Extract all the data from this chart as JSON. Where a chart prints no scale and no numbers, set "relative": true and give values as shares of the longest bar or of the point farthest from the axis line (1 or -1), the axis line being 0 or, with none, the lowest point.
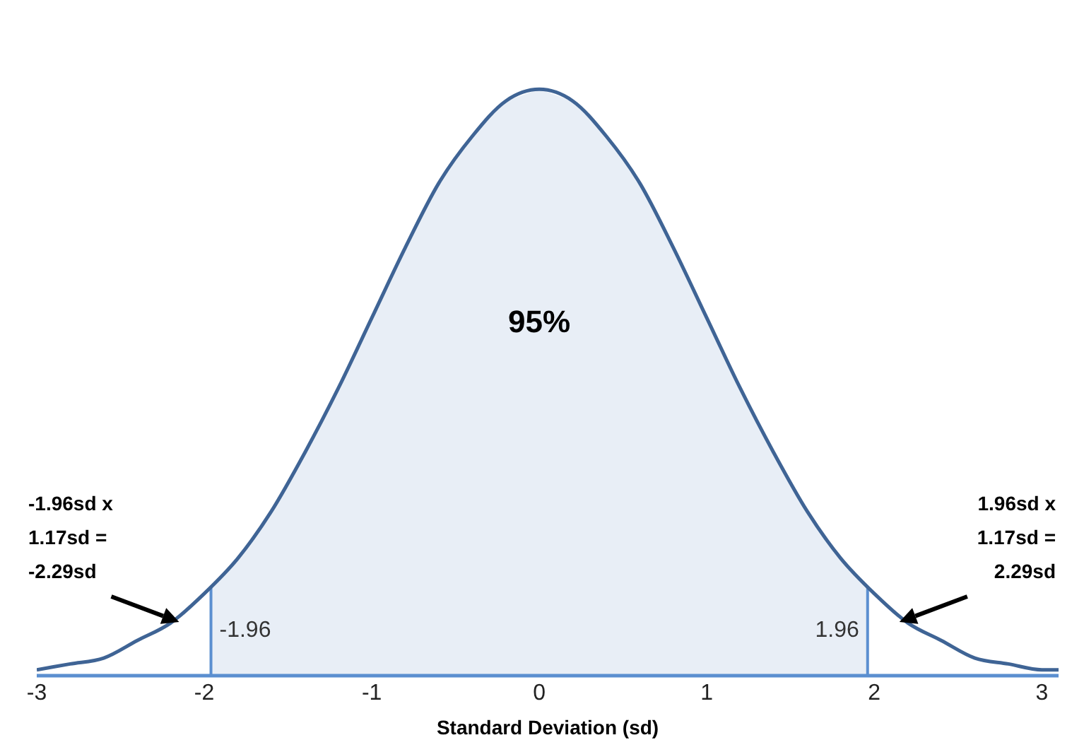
{
  "chart_data": {
    "type": "line",
    "relative": true,
    "xlabel": "Standard Deviation (sd)",
    "x": [
      -3,
      -2.8,
      -2.6,
      -2.4,
      -2.2,
      -2,
      -1.8,
      -1.6,
      -1.4,
      -1.2,
      -1,
      -0.8,
      -0.6,
      -0.4,
      -0.2,
      0,
      0.2,
      0.4,
      0.6,
      0.8,
      1,
      1.2,
      1.4,
      1.6,
      1.8,
      2,
      2.2,
      2.4,
      2.6,
      2.8,
      3,
      3.1
    ],
    "series": [
      {
        "color": "#3f6495",
        "values": [
          0.01,
          0.02,
          0.03,
          0.06,
          0.09,
          0.14,
          0.2,
          0.28,
          0.38,
          0.49,
          0.61,
          0.73,
          0.84,
          0.92,
          0.98,
          1,
          0.98,
          0.92,
          0.84,
          0.73,
          0.61,
          0.49,
          0.38,
          0.28,
          0.2,
          0.14,
          0.09,
          0.06,
          0.03,
          0.02,
          0.01,
          0.01
        ]
      }
    ],
    "xlim": [
      -3,
      3.1
    ],
    "xticks": [
      -3,
      -2,
      -1,
      0,
      1,
      2,
      3
    ],
    "ref_lines": [
      {
        "axis": "x",
        "value": -1.96,
        "label": "-1.96",
        "color": "#5b8fd0"
      },
      {
        "axis": "x",
        "value": 1.96,
        "label": "1.96",
        "color": "#5b8fd0"
      }
    ],
    "bands": [
      {
        "axis": "x",
        "from": -1.96,
        "to": 1.96,
        "label": "95%",
        "color": "#8eaad4"
      }
    ],
    "annotations": [
      "-1.96sd x\n1.17sd =\n-2.29sd",
      "1.96sd x\n1.17sd =\n2.29sd"
    ],
    "grid": false,
    "legend": false,
    "marker": "none",
    "line_style": "solid"
  }
}
